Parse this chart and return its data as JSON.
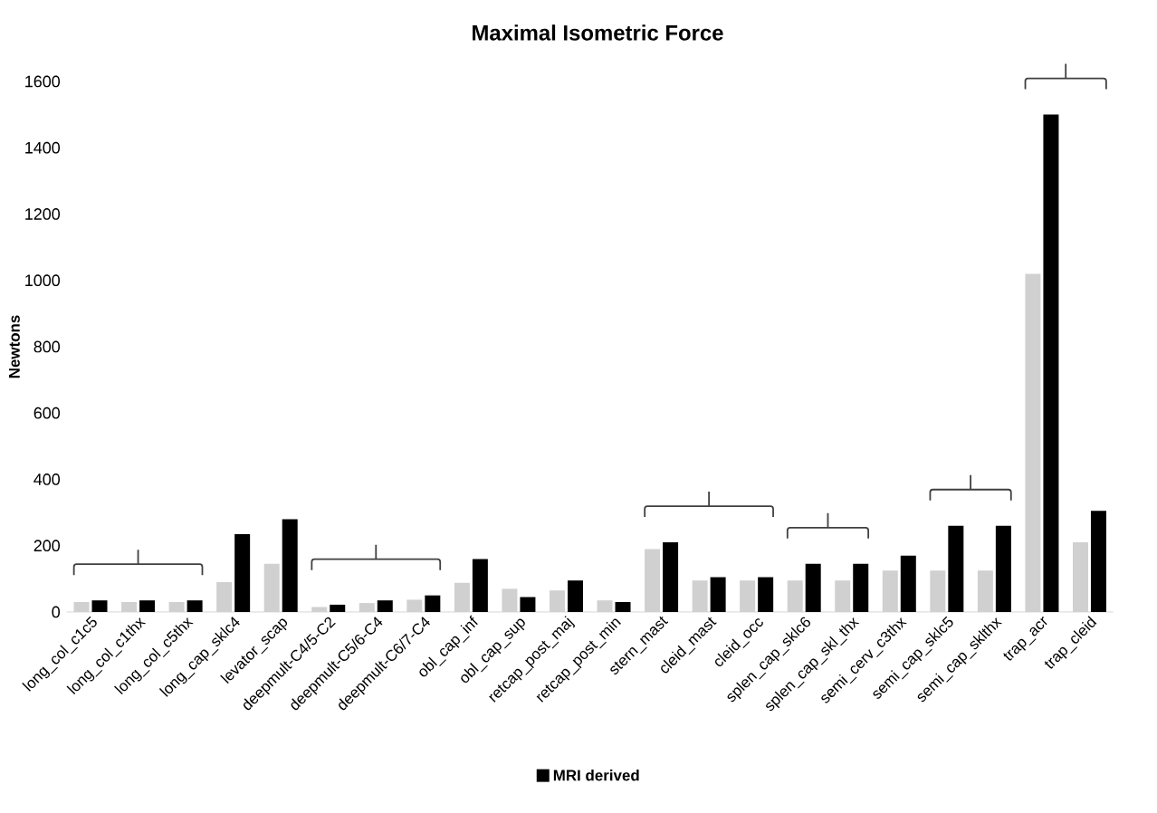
{
  "chart_data": {
    "type": "bar",
    "title": "Maximal Isometric Force",
    "ylabel": "Newtons",
    "categories": [
      "long_col_c1c5",
      "long_col_c1thx",
      "long_col_c5thx",
      "long_cap_sklc4",
      "levator_scap",
      "deepmult-C4/5-C2",
      "deepmult-C5/6-C4",
      "deepmult-C6/7-C4",
      "obl_cap_inf",
      "obl_cap_sup",
      "retcap_post_maj",
      "retcap_post_min",
      "stern_mast",
      "cleid_mast",
      "cleid_occ",
      "splen_cap_sklc6",
      "splen_cap_skl_thx",
      "semi_cerv_c3thx",
      "semi_cap_sklc5",
      "semi_cap_sklthx",
      "trap_acr",
      "trap_cleid"
    ],
    "series": [
      {
        "color": "#d0d0d0",
        "values": [
          30,
          30,
          30,
          90,
          145,
          15,
          27,
          37,
          88,
          70,
          65,
          35,
          190,
          95,
          95,
          95,
          95,
          125,
          125,
          125,
          1020,
          210
        ]
      },
      {
        "name": "MRI derived",
        "color": "#000000",
        "values": [
          35,
          35,
          35,
          235,
          280,
          22,
          35,
          50,
          160,
          45,
          95,
          30,
          210,
          105,
          105,
          145,
          145,
          170,
          260,
          260,
          1500,
          305
        ]
      }
    ],
    "ylim": [
      0,
      1600
    ],
    "yticks": [
      0,
      200,
      400,
      600,
      800,
      1000,
      1200,
      1400,
      1600
    ],
    "grid": false,
    "legend": "bottom"
  }
}
